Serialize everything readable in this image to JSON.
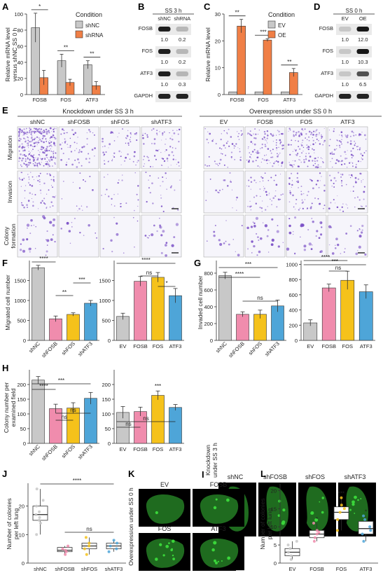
{
  "panel_letters": [
    "A",
    "B",
    "C",
    "D",
    "E",
    "F",
    "G",
    "H",
    "I",
    "J",
    "K",
    "L"
  ],
  "colors": {
    "gray": "#c8c8c8",
    "orange": "#f07f46",
    "pink": "#f08cad",
    "gold": "#f5c21b",
    "blue": "#4ea5d8",
    "purple": "#7a4fc6",
    "green": "#3ad53a"
  },
  "panelA": {
    "ylabel": "Relative mRNA level versus shNC SS 0 h",
    "legend_title": "Condition",
    "legend": [
      "shNC",
      "shRNA"
    ]
  },
  "panelB": {
    "header": "SS 3 h",
    "cols": [
      "shNC",
      "shRNA"
    ],
    "rows": [
      {
        "label": "FOSB",
        "values": [
          "1.0",
          "0.2"
        ]
      },
      {
        "label": "FOS",
        "values": [
          "1.0",
          "0.2"
        ]
      },
      {
        "label": "ATF3",
        "values": [
          "1.0",
          "0.3"
        ]
      },
      {
        "label": "GAPDH",
        "values": [
          "",
          ""
        ]
      }
    ]
  },
  "panelC": {
    "ylabel": "Relative mRNA level",
    "legend_title": "Condition",
    "legend": [
      "EV",
      "OE"
    ]
  },
  "panelD": {
    "header": "SS 0 h",
    "cols": [
      "EV",
      "OE"
    ],
    "rows": [
      {
        "label": "FOSB",
        "values": [
          "1.0",
          "12.0"
        ]
      },
      {
        "label": "FOS",
        "values": [
          "1.0",
          "10.3"
        ]
      },
      {
        "label": "ATF3",
        "values": [
          "1.0",
          "6.5"
        ]
      },
      {
        "label": "GAPDH",
        "values": [
          "",
          ""
        ]
      }
    ]
  },
  "panelE": {
    "left_title": "Knockdown under SS 3 h",
    "right_title": "Overexpression under SS 0 h",
    "left_cols": [
      "shNC",
      "shFOSB",
      "shFOS",
      "shATF3"
    ],
    "right_cols": [
      "EV",
      "FOSB",
      "FOS",
      "ATF3"
    ],
    "rows": [
      "Migration",
      "Invasion",
      "Colony formation"
    ]
  },
  "panelF": {
    "ylabel": "Migrated cell number"
  },
  "panelG": {
    "ylabel": "Invaded cell number"
  },
  "panelH": {
    "ylabel": "Colony number per examined field"
  },
  "panelI": {
    "side_label": "Knockdown under SS 3 h",
    "cols": [
      "shNC",
      "shFOSB",
      "shFOS",
      "shATF3"
    ]
  },
  "panelJ": {
    "ylabel": "Number of colonies per left lung"
  },
  "panelK": {
    "side_label": "Overexpression under SS 0 h",
    "cols": [
      "EV",
      "FOSB",
      "FOS",
      "ATF3"
    ]
  },
  "panelL": {
    "ylabel": "Number of colonies per left lung"
  },
  "chart_data": [
    {
      "id": "A",
      "type": "bar",
      "categories": [
        "FOSB",
        "FOS",
        "ATF3"
      ],
      "series": [
        {
          "name": "shNC",
          "values": [
            83,
            42,
            37
          ],
          "errors": [
            18,
            8,
            5
          ]
        },
        {
          "name": "shRNA",
          "values": [
            21,
            15,
            11
          ],
          "errors": [
            9,
            4,
            5
          ]
        }
      ],
      "ylim": [
        0,
        100
      ],
      "yticks": [
        0,
        20,
        40,
        60,
        80,
        100
      ],
      "sig": [
        {
          "label": "*",
          "cat": 0
        },
        {
          "label": "**",
          "cat": 1
        },
        {
          "label": "**",
          "cat": 2
        }
      ]
    },
    {
      "id": "C",
      "type": "bar",
      "categories": [
        "FOSB",
        "FOS",
        "ATF3"
      ],
      "series": [
        {
          "name": "EV",
          "values": [
            1,
            1,
            1
          ],
          "errors": [
            0,
            0,
            0
          ]
        },
        {
          "name": "OE",
          "values": [
            25.5,
            20.3,
            8.2
          ],
          "errors": [
            2.5,
            0.5,
            1.5
          ]
        }
      ],
      "ylim": [
        0,
        30
      ],
      "yticks": [
        0,
        10,
        20,
        30
      ],
      "sig": [
        {
          "label": "**",
          "cat": 0
        },
        {
          "label": "***",
          "cat": 1
        },
        {
          "label": "**",
          "cat": 2
        }
      ]
    },
    {
      "id": "F1",
      "type": "bar",
      "categories": [
        "shNC",
        "shFOSB",
        "shFOS",
        "shATF3"
      ],
      "values": [
        1820,
        540,
        650,
        930
      ],
      "errors": [
        60,
        70,
        40,
        70
      ],
      "ylim": [
        0,
        2000
      ],
      "yticks": [
        0,
        500,
        1000,
        1500
      ],
      "sig": [
        {
          "label": "****",
          "a": 0,
          "b": 1
        },
        {
          "label": "**",
          "a": 1,
          "b": 2
        },
        {
          "label": "***",
          "a": 2,
          "b": 3
        }
      ]
    },
    {
      "id": "F2",
      "type": "bar",
      "categories": [
        "EV",
        "FOSB",
        "FOS",
        "ATF3"
      ],
      "values": [
        600,
        1480,
        1580,
        1120
      ],
      "errors": [
        80,
        120,
        120,
        180
      ],
      "ylim": [
        0,
        2000
      ],
      "yticks": [
        0,
        500,
        1000,
        1500
      ],
      "sig": [
        {
          "label": "****",
          "a": 0,
          "b": 3
        },
        {
          "label": "ns",
          "a": 1,
          "b": 2
        },
        {
          "label": "*",
          "a": 2,
          "b": 3
        }
      ]
    },
    {
      "id": "G1",
      "type": "bar",
      "categories": [
        "shNC",
        "shFOSB",
        "shFOS",
        "shATF3"
      ],
      "values": [
        770,
        310,
        310,
        410
      ],
      "errors": [
        40,
        30,
        50,
        70
      ],
      "ylim": [
        0,
        950
      ],
      "yticks": [
        0,
        200,
        400,
        600,
        800
      ],
      "sig": [
        {
          "label": "***",
          "a": 0,
          "b": 3
        },
        {
          "label": "****",
          "a": 0,
          "b": 2
        },
        {
          "label": "ns",
          "a": 1,
          "b": 3
        }
      ]
    },
    {
      "id": "G2",
      "type": "bar",
      "categories": [
        "EV",
        "FOSB",
        "FOS",
        "ATF3"
      ],
      "values": [
        230,
        690,
        790,
        640
      ],
      "errors": [
        40,
        50,
        120,
        90
      ],
      "ylim": [
        0,
        1050
      ],
      "yticks": [
        0,
        200,
        400,
        600,
        800,
        1000
      ],
      "sig": [
        {
          "label": "***",
          "a": 0,
          "b": 3
        },
        {
          "label": "****",
          "a": 0,
          "b": 2
        },
        {
          "label": "ns",
          "a": 1,
          "b": 2
        }
      ]
    },
    {
      "id": "H1",
      "type": "bar",
      "categories": [
        "shNC",
        "shFOSB",
        "shFOS",
        "shATF3"
      ],
      "values": [
        215,
        118,
        120,
        153
      ],
      "errors": [
        12,
        15,
        18,
        20
      ],
      "ylim": [
        0,
        250
      ],
      "yticks": [
        0,
        50,
        100,
        150,
        200
      ],
      "sig": [
        {
          "label": "****",
          "a": 0,
          "b": 1
        },
        {
          "label": "***",
          "a": 0,
          "b": 3
        },
        {
          "label": "ns",
          "a": 1,
          "b": 2
        },
        {
          "label": "ns",
          "a": 1,
          "b": 3
        }
      ]
    },
    {
      "id": "H2",
      "type": "bar",
      "categories": [
        "EV",
        "FOSB",
        "FOS",
        "ATF3"
      ],
      "values": [
        105,
        108,
        163,
        122
      ],
      "errors": [
        20,
        15,
        15,
        10
      ],
      "ylim": [
        0,
        250
      ],
      "yticks": [
        0,
        50,
        100,
        150,
        200
      ],
      "sig": [
        {
          "label": "ns",
          "a": 0,
          "b": 1
        },
        {
          "label": "***",
          "at": 2
        },
        {
          "label": "ns",
          "a": 0,
          "b": 3
        }
      ]
    },
    {
      "id": "J",
      "type": "box",
      "categories": [
        "shNC",
        "shFOSB",
        "shFOS",
        "shATF3"
      ],
      "boxes": [
        {
          "min": 10,
          "q1": 15,
          "median": 17,
          "q3": 20,
          "max": 26
        },
        {
          "min": 3,
          "q1": 4,
          "median": 4.5,
          "q3": 5.5,
          "max": 6
        },
        {
          "min": 3,
          "q1": 5,
          "median": 6,
          "q3": 7,
          "max": 9
        },
        {
          "min": 4,
          "q1": 5,
          "median": 6,
          "q3": 7,
          "max": 8
        }
      ],
      "points": [
        [
          26,
          22,
          20,
          18,
          17,
          16,
          15,
          14,
          10
        ],
        [
          3,
          4,
          4.5,
          5,
          6
        ],
        [
          3,
          5,
          6,
          7,
          9
        ],
        [
          4,
          5,
          6,
          7,
          8
        ]
      ],
      "ylim": [
        0,
        28
      ],
      "yticks": [
        0,
        10,
        20
      ],
      "sig": [
        {
          "label": "****",
          "a": 0,
          "b": 3
        },
        {
          "label": "ns",
          "a": 1,
          "b": 3
        }
      ]
    },
    {
      "id": "L",
      "type": "box",
      "categories": [
        "EV",
        "FOSB",
        "FOS",
        "ATF3"
      ],
      "boxes": [
        {
          "min": 1,
          "q1": 2,
          "median": 3,
          "q3": 4,
          "max": 6
        },
        {
          "min": 6,
          "q1": 7,
          "median": 8,
          "q3": 9,
          "max": 11
        },
        {
          "min": 9,
          "q1": 12,
          "median": 14,
          "q3": 15.5,
          "max": 18
        },
        {
          "min": 6,
          "q1": 8,
          "median": 9.5,
          "q3": 11.5,
          "max": 13
        }
      ],
      "points": [
        [
          1,
          2,
          3,
          4,
          5,
          6
        ],
        [
          6,
          7,
          8,
          8.5,
          9,
          11
        ],
        [
          9,
          12,
          14,
          15,
          16,
          18
        ],
        [
          6,
          8,
          9,
          10,
          12,
          13
        ]
      ],
      "ylim": [
        0,
        22
      ],
      "yticks": [
        0,
        5,
        10,
        15,
        20
      ],
      "sig": [
        {
          "label": "*",
          "at": 1
        },
        {
          "label": "***",
          "at": 2
        },
        {
          "label": "*",
          "at": 3
        }
      ]
    }
  ]
}
